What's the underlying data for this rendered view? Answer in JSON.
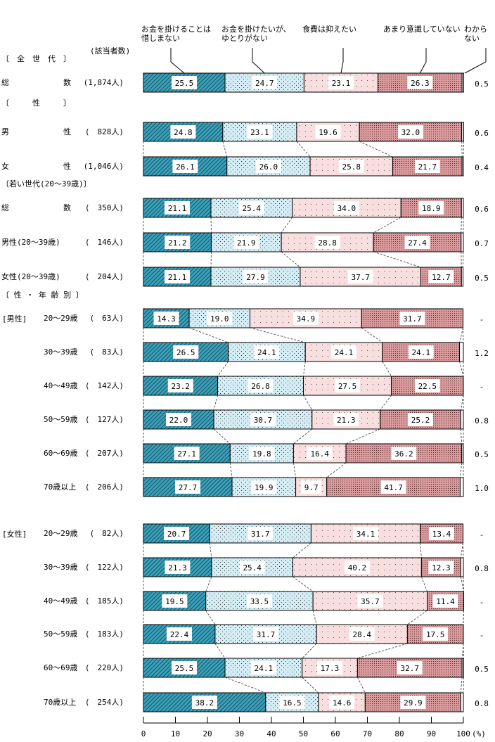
{
  "chart_data": {
    "type": "bar",
    "orientation": "horizontal",
    "stacked": true,
    "unit_label": "(%)",
    "count_header": "(該当者数)",
    "xlim": [
      0,
      100
    ],
    "x_ticks": [
      "0",
      "10",
      "20",
      "30",
      "40",
      "50",
      "60",
      "70",
      "80",
      "90",
      "100"
    ],
    "dash_label": "-",
    "series": [
      {
        "name": "お金を掛けることは\n惜しまない",
        "color": "#3a9fb8"
      },
      {
        "name": "お金を掛けたいが、\nゆとりがない",
        "color": "#d3ecf4"
      },
      {
        "name": "食費は抑えたい",
        "color": "#f8dede"
      },
      {
        "name": "あまり意識していない",
        "color": "#d89a9c"
      },
      {
        "name": "わから\nない",
        "color": "#ffffff"
      }
    ],
    "sections": [
      {
        "header": "〔　全　世　代　〕",
        "rows": [
          {
            "label": "総　　　　　　　数",
            "count": "(1,874人)",
            "values": [
              25.5,
              24.7,
              23.1,
              26.3,
              0.5
            ]
          }
        ]
      },
      {
        "header": "〔　　　性　　　〕",
        "rows": [
          {
            "label": "男　　　　　　　性",
            "count": "(　828人)",
            "values": [
              24.8,
              23.1,
              19.6,
              32.0,
              0.6
            ]
          },
          {
            "label": "女　　　　　　　性",
            "count": "(1,046人)",
            "values": [
              26.1,
              26.0,
              25.8,
              21.7,
              0.4
            ]
          }
        ]
      },
      {
        "header": "〔若い世代(20～39歳)〕",
        "rows": [
          {
            "label": "総　　　　　　　数",
            "count": "(　350人)",
            "values": [
              21.1,
              25.4,
              34.0,
              18.9,
              0.6
            ]
          },
          {
            "label": "男性(20～39歳)",
            "count": "(　146人)",
            "values": [
              21.2,
              21.9,
              28.8,
              27.4,
              0.7
            ]
          },
          {
            "label": "女性(20～39歳)",
            "count": "(　204人)",
            "values": [
              21.1,
              27.9,
              37.7,
              12.7,
              0.5
            ]
          }
        ]
      },
      {
        "header": "〔 性 ・ 年 齢 別 〕",
        "group": "[男性]",
        "rows": [
          {
            "label": "20～29歳",
            "count": "(　63人)",
            "values": [
              14.3,
              19.0,
              34.9,
              31.7,
              null
            ]
          },
          {
            "label": "30～39歳",
            "count": "(　83人)",
            "values": [
              26.5,
              24.1,
              24.1,
              24.1,
              1.2
            ]
          },
          {
            "label": "40～49歳",
            "count": "(　142人)",
            "values": [
              23.2,
              26.8,
              27.5,
              22.5,
              null
            ]
          },
          {
            "label": "50～59歳",
            "count": "(　127人)",
            "values": [
              22.0,
              30.7,
              21.3,
              25.2,
              0.8
            ]
          },
          {
            "label": "60～69歳",
            "count": "(　207人)",
            "values": [
              27.1,
              19.8,
              16.4,
              36.2,
              0.5
            ]
          },
          {
            "label": "70歳以上",
            "count": "(　206人)",
            "values": [
              27.7,
              19.9,
              9.7,
              41.7,
              1.0
            ]
          }
        ]
      },
      {
        "header": "",
        "group": "[女性]",
        "rows": [
          {
            "label": "20～29歳",
            "count": "(　82人)",
            "values": [
              20.7,
              31.7,
              34.1,
              13.4,
              null
            ]
          },
          {
            "label": "30～39歳",
            "count": "(　122人)",
            "values": [
              21.3,
              25.4,
              40.2,
              12.3,
              0.8
            ]
          },
          {
            "label": "40～49歳",
            "count": "(　185人)",
            "values": [
              19.5,
              33.5,
              35.7,
              11.4,
              null
            ]
          },
          {
            "label": "50～59歳",
            "count": "(　183人)",
            "values": [
              22.4,
              31.7,
              28.4,
              17.5,
              null
            ]
          },
          {
            "label": "60～69歳",
            "count": "(　220人)",
            "values": [
              25.5,
              24.1,
              17.3,
              32.7,
              0.5
            ]
          },
          {
            "label": "70歳以上",
            "count": "(　254人)",
            "values": [
              38.2,
              16.5,
              14.6,
              29.9,
              0.8
            ]
          }
        ]
      }
    ]
  }
}
